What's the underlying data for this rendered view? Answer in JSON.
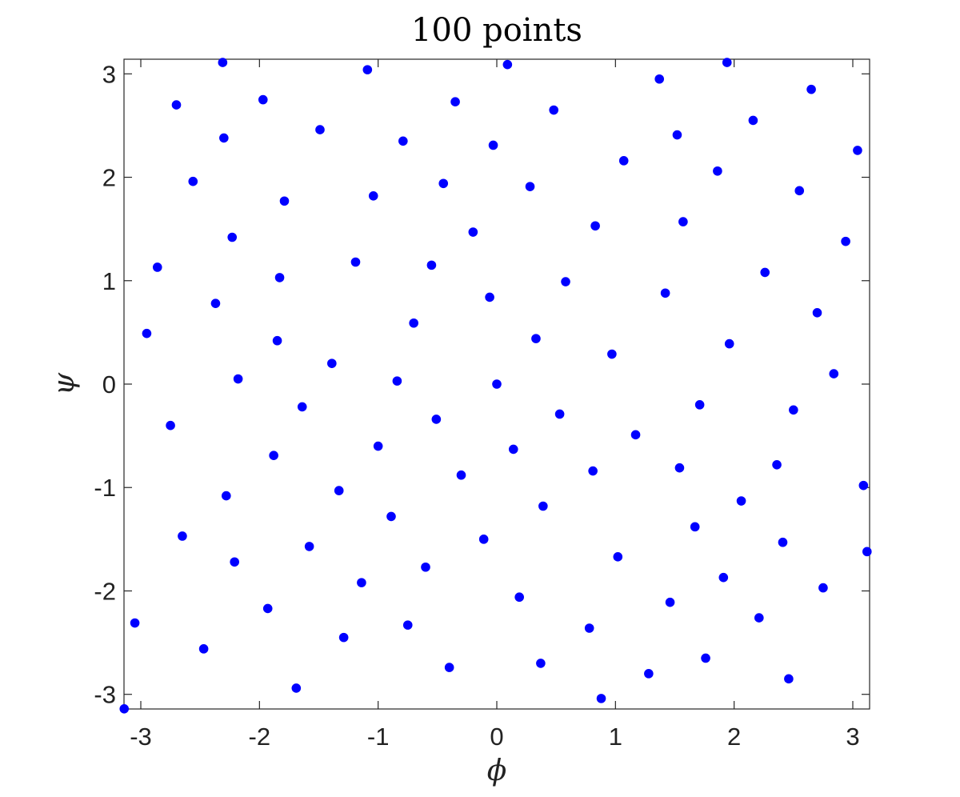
{
  "chart_data": {
    "type": "scatter",
    "title": "100 points",
    "xlabel": "ϕ",
    "ylabel": "ψ",
    "xlim": [
      -3.14159,
      3.14159
    ],
    "ylim": [
      -3.14159,
      3.14159
    ],
    "xticks": [
      -3,
      -2,
      -1,
      0,
      1,
      2,
      3
    ],
    "xtick_labels": [
      "-3",
      "-2",
      "-1",
      "0",
      "1",
      "2",
      "3"
    ],
    "yticks": [
      -3,
      -2,
      -1,
      0,
      1,
      2,
      3
    ],
    "ytick_labels": [
      "-3",
      "-2",
      "-1",
      "0",
      "1",
      "2",
      "3"
    ],
    "grid": false,
    "legend": false,
    "marker_color": "#0000ff",
    "points": [
      [
        -3.14,
        -3.14
      ],
      [
        -3.05,
        -2.31
      ],
      [
        -2.95,
        0.49
      ],
      [
        -2.86,
        1.13
      ],
      [
        -2.75,
        -0.4
      ],
      [
        -2.7,
        2.7
      ],
      [
        -2.65,
        -1.47
      ],
      [
        -2.56,
        1.96
      ],
      [
        -2.47,
        -2.56
      ],
      [
        -2.37,
        0.78
      ],
      [
        -2.31,
        3.11
      ],
      [
        -2.3,
        2.38
      ],
      [
        -2.28,
        -1.08
      ],
      [
        -2.23,
        1.42
      ],
      [
        -2.21,
        -1.72
      ],
      [
        -2.18,
        0.05
      ],
      [
        -1.93,
        -2.17
      ],
      [
        -1.97,
        2.75
      ],
      [
        -1.88,
        -0.69
      ],
      [
        -1.85,
        0.42
      ],
      [
        -1.83,
        1.03
      ],
      [
        -1.79,
        1.77
      ],
      [
        -1.69,
        -2.94
      ],
      [
        -1.64,
        -0.22
      ],
      [
        -1.58,
        -1.57
      ],
      [
        -1.49,
        2.46
      ],
      [
        -1.33,
        -1.03
      ],
      [
        -1.39,
        0.2
      ],
      [
        -1.29,
        -2.45
      ],
      [
        -1.19,
        1.18
      ],
      [
        -1.14,
        -1.92
      ],
      [
        -1.09,
        3.04
      ],
      [
        -1.04,
        1.82
      ],
      [
        -1.0,
        -0.6
      ],
      [
        -0.89,
        -1.28
      ],
      [
        -0.84,
        0.03
      ],
      [
        -0.79,
        2.35
      ],
      [
        -0.75,
        -2.33
      ],
      [
        -0.7,
        0.59
      ],
      [
        -0.6,
        -1.77
      ],
      [
        -0.55,
        1.15
      ],
      [
        -0.51,
        -0.34
      ],
      [
        -0.45,
        1.94
      ],
      [
        -0.4,
        -2.74
      ],
      [
        -0.35,
        2.73
      ],
      [
        -0.3,
        -0.88
      ],
      [
        -0.2,
        1.47
      ],
      [
        -0.11,
        -1.5
      ],
      [
        -0.06,
        0.84
      ],
      [
        -0.03,
        2.31
      ],
      [
        0.0,
        0.0
      ],
      [
        0.09,
        3.09
      ],
      [
        0.14,
        -0.63
      ],
      [
        0.19,
        -2.06
      ],
      [
        0.28,
        1.91
      ],
      [
        0.33,
        0.44
      ],
      [
        0.37,
        -2.7
      ],
      [
        0.39,
        -1.18
      ],
      [
        0.48,
        2.65
      ],
      [
        0.53,
        -0.29
      ],
      [
        0.58,
        0.99
      ],
      [
        0.78,
        -2.36
      ],
      [
        0.81,
        -0.84
      ],
      [
        0.83,
        1.53
      ],
      [
        0.88,
        -3.04
      ],
      [
        0.97,
        0.29
      ],
      [
        1.02,
        -1.67
      ],
      [
        1.07,
        2.16
      ],
      [
        1.17,
        -0.49
      ],
      [
        1.28,
        -2.8
      ],
      [
        1.37,
        2.95
      ],
      [
        1.42,
        0.88
      ],
      [
        1.46,
        -2.11
      ],
      [
        1.52,
        2.41
      ],
      [
        1.54,
        -0.81
      ],
      [
        1.57,
        1.57
      ],
      [
        1.67,
        -1.38
      ],
      [
        1.71,
        -0.2
      ],
      [
        1.76,
        -2.65
      ],
      [
        1.86,
        2.06
      ],
      [
        1.91,
        -1.87
      ],
      [
        1.94,
        3.11
      ],
      [
        1.96,
        0.39
      ],
      [
        2.06,
        -1.13
      ],
      [
        2.16,
        2.55
      ],
      [
        2.21,
        -2.26
      ],
      [
        2.26,
        1.08
      ],
      [
        2.36,
        -0.78
      ],
      [
        2.41,
        -1.53
      ],
      [
        2.46,
        -2.85
      ],
      [
        2.5,
        -0.25
      ],
      [
        2.55,
        1.87
      ],
      [
        2.65,
        2.85
      ],
      [
        2.7,
        0.69
      ],
      [
        2.75,
        -1.97
      ],
      [
        2.84,
        0.1
      ],
      [
        2.94,
        1.38
      ],
      [
        3.04,
        2.26
      ],
      [
        3.09,
        -0.98
      ],
      [
        3.12,
        -1.62
      ]
    ]
  }
}
